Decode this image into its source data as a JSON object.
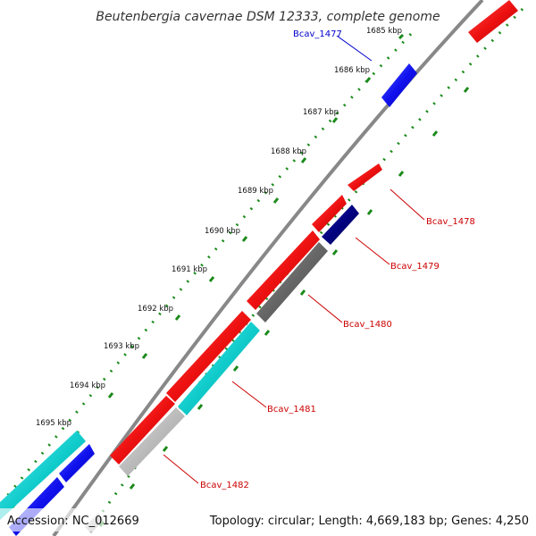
{
  "title": "Beutenbergia cavernae DSM 12333, complete genome",
  "ticks": [
    "1685 kbp",
    "1686 kbp",
    "1687 kbp",
    "1688 kbp",
    "1689 kbp",
    "1690 kbp",
    "1691 kbp",
    "1692 kbp",
    "1693 kbp",
    "1694 kbp",
    "1695 kbp"
  ],
  "gene_labels": [
    {
      "name": "Bcav_1477",
      "color": "#0000cc"
    },
    {
      "name": "Bcav_1478",
      "color": "#cc0000"
    },
    {
      "name": "Bcav_1479",
      "color": "#cc0000"
    },
    {
      "name": "Bcav_1480",
      "color": "#cc0000"
    },
    {
      "name": "Bcav_1481",
      "color": "#cc0000"
    },
    {
      "name": "Bcav_1482",
      "color": "#cc0000"
    }
  ],
  "colors": {
    "forward_red": "#ee1111",
    "blue": "#1111ee",
    "navy": "#000080",
    "cyan": "#11cccc",
    "dark_gray": "#666666",
    "light_gray": "#bbbbbb",
    "backbone": "#888888",
    "tick_green": "#1a8a1a"
  },
  "footer": {
    "accession": "Accession: NC_012669",
    "summary": "Topology: circular; Length: 4,669,183 bp; Genes: 4,250"
  }
}
